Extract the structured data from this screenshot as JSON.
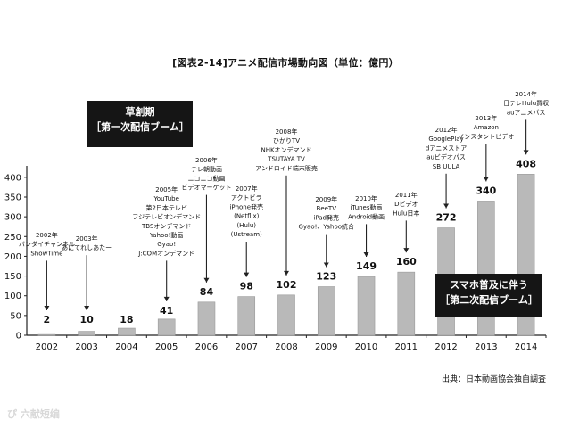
{
  "title": "[図表2-14]アニメ配信市場動向図（単位：億円）",
  "era_first": {
    "line1": "草創期",
    "line2": "［第一次配信ブーム］"
  },
  "era_second": {
    "line1": "スマホ普及に伴う",
    "line2": "［第二次配信ブーム］"
  },
  "source": "出典：日本動画協会独自調査",
  "watermark": "ぴ 六献短编",
  "colors": {
    "bar": "#b9b9b9",
    "bar_edge": "#9a9a9a",
    "axis": "#222222",
    "text": "#111111"
  },
  "chart_data": {
    "type": "bar",
    "title": "[図表2-14]アニメ配信市場動向図（単位：億円）",
    "categories": [
      "2002",
      "2003",
      "2004",
      "2005",
      "2006",
      "2007",
      "2008",
      "2009",
      "2010",
      "2011",
      "2012",
      "2013",
      "2014"
    ],
    "values": [
      2,
      10,
      18,
      41,
      84,
      98,
      102,
      123,
      149,
      160,
      272,
      340,
      408
    ],
    "ylim": [
      0,
      420
    ],
    "yticks": [
      0,
      50,
      100,
      150,
      200,
      250,
      300,
      350,
      400
    ],
    "grid": false,
    "annotations": [
      {
        "year": "2002",
        "lines": [
          "2002年",
          "バンダイチャンネル",
          "ShowTime"
        ]
      },
      {
        "year": "2003",
        "lines": [
          "2003年",
          "あにてれしあたー"
        ]
      },
      {
        "year": "2005",
        "lines": [
          "2005年",
          "YouTube",
          "第2日本テレビ",
          "フジテレビオンデマンド",
          "TBSオンデマンド",
          "Yahoo!動画",
          "Gyao!",
          "J:COMオンデマンド"
        ]
      },
      {
        "year": "2006",
        "lines": [
          "2006年",
          "テレ朝動画",
          "ニコニコ動画",
          "ビデオマーケット"
        ]
      },
      {
        "year": "2007",
        "lines": [
          "2007年",
          "アクトビラ",
          "iPhone発売",
          "(Netflix)",
          "(Hulu)",
          "(Ustream)"
        ]
      },
      {
        "year": "2008",
        "lines": [
          "2008年",
          "ひかりTV",
          "NHKオンデマンド",
          "TSUTAYA TV",
          "アンドロイド端末販売"
        ]
      },
      {
        "year": "2009",
        "lines": [
          "2009年",
          "BeeTV",
          "iPad発売",
          "Gyao!、Yahoo統合"
        ]
      },
      {
        "year": "2010",
        "lines": [
          "2010年",
          "iTunes動画",
          "Android動画"
        ]
      },
      {
        "year": "2011",
        "lines": [
          "2011年",
          "Dビデオ",
          "Hulu日本"
        ]
      },
      {
        "year": "2012",
        "lines": [
          "2012年",
          "GooglePlay",
          "dアニメストア",
          "auビデオパス",
          "SB UULA"
        ]
      },
      {
        "year": "2013",
        "lines": [
          "2013年",
          "Amazon",
          "インスタントビデオ"
        ]
      },
      {
        "year": "2014",
        "lines": [
          "2014年",
          "日テレHulu買収",
          "auアニメパス"
        ]
      }
    ]
  }
}
